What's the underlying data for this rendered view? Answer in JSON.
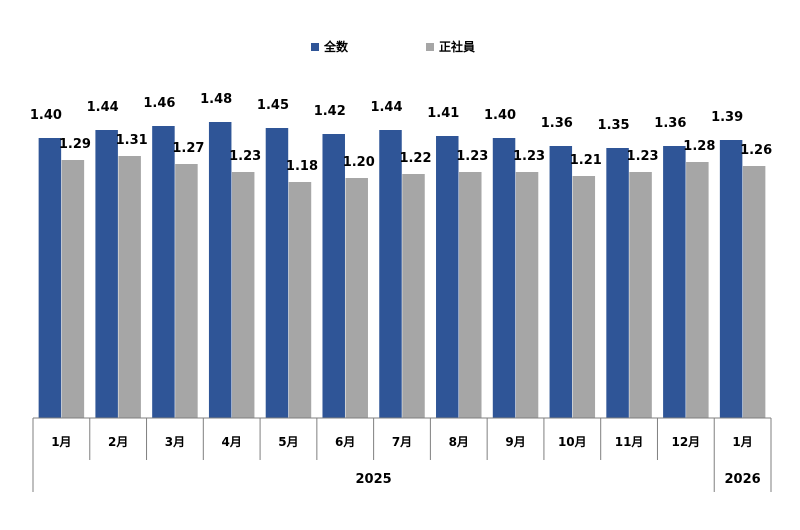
{
  "chart_data": {
    "type": "bar",
    "categories": [
      "1月",
      "2月",
      "3月",
      "4月",
      "5月",
      "6月",
      "7月",
      "8月",
      "9月",
      "10月",
      "11月",
      "12月",
      "1月"
    ],
    "groups": [
      {
        "label": "2025",
        "span": 12
      },
      {
        "label": "2026",
        "span": 1
      }
    ],
    "series": [
      {
        "name": "全数",
        "color": "#2f5597",
        "values": [
          1.4,
          1.44,
          1.46,
          1.48,
          1.45,
          1.42,
          1.44,
          1.41,
          1.4,
          1.36,
          1.35,
          1.36,
          1.39
        ],
        "labels": [
          "1.40",
          "1.44",
          "1.46",
          "1.48",
          "1.45",
          "1.42",
          "1.44",
          "1.41",
          "1.40",
          "1.36",
          "1.35",
          "1.36",
          "1.39"
        ]
      },
      {
        "name": "正社員",
        "color": "#a6a6a6",
        "values": [
          1.29,
          1.31,
          1.27,
          1.23,
          1.18,
          1.2,
          1.22,
          1.23,
          1.23,
          1.21,
          1.23,
          1.28,
          1.26
        ],
        "labels": [
          "1.29",
          "1.31",
          "1.27",
          "1.23",
          "1.18",
          "1.20",
          "1.22",
          "1.23",
          "1.23",
          "1.21",
          "1.23",
          "1.28",
          "1.26"
        ]
      }
    ],
    "ylim": [
      0,
      1.48
    ],
    "grid": false,
    "legend_position": "top-center"
  }
}
